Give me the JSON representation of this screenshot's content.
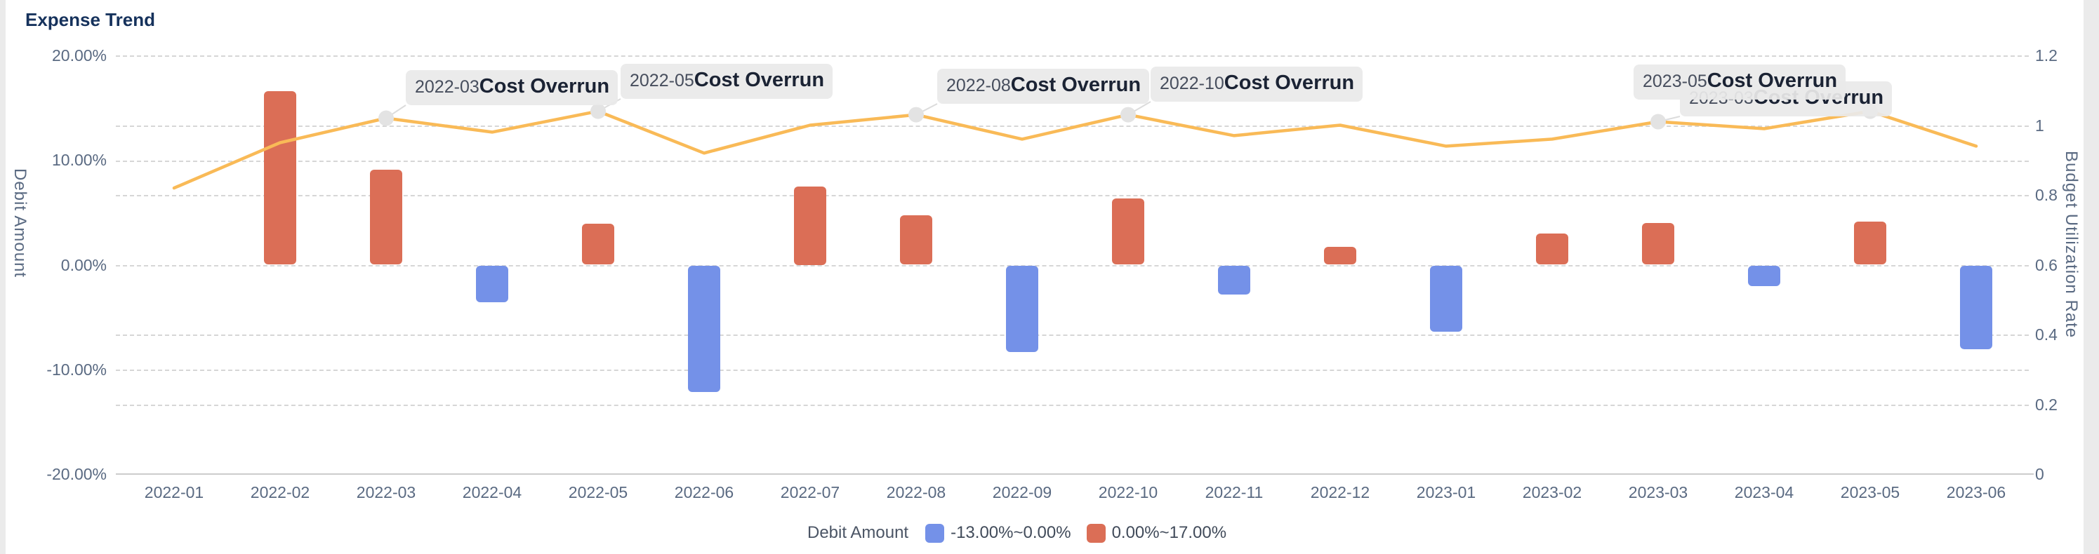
{
  "page": {
    "title": "Expense Trend"
  },
  "chart_data": {
    "type": "bar+line",
    "title": "Expense Trend",
    "categories": [
      "2022-01",
      "2022-02",
      "2022-03",
      "2022-04",
      "2022-05",
      "2022-06",
      "2022-07",
      "2022-08",
      "2022-09",
      "2022-10",
      "2022-11",
      "2022-12",
      "2023-01",
      "2023-02",
      "2023-03",
      "2023-04",
      "2023-05",
      "2023-06"
    ],
    "series": [
      {
        "name": "Debit Amount",
        "type": "bar",
        "axis": "left",
        "unit": "%",
        "values": [
          0,
          16.6,
          9.1,
          -3.5,
          3.9,
          -12.1,
          7.5,
          4.7,
          -8.3,
          6.3,
          -2.8,
          1.7,
          -6.3,
          3.0,
          4.0,
          -2.0,
          4.1,
          -8.0
        ]
      },
      {
        "name": "Budget Utilization Rate",
        "type": "line",
        "axis": "right",
        "values": [
          0.82,
          0.95,
          1.02,
          0.98,
          1.04,
          0.92,
          1.0,
          1.03,
          0.96,
          1.03,
          0.97,
          1.0,
          0.94,
          0.96,
          1.01,
          0.99,
          1.04,
          0.94
        ]
      }
    ],
    "left_axis": {
      "name": "Debit Amount",
      "tick_labels": [
        "20.00%",
        "10.00%",
        "0.00%",
        "-10.00%",
        "-20.00%"
      ],
      "tick_values": [
        20,
        10,
        0,
        -10,
        -20
      ],
      "ylim": [
        -20,
        20
      ]
    },
    "right_axis": {
      "name": "Budget Utilization Rate",
      "tick_labels": [
        "1.2",
        "1",
        "0.8",
        "0.6",
        "0.4",
        "0.2",
        "0"
      ],
      "tick_values": [
        1.2,
        1,
        0.8,
        0.6,
        0.4,
        0.2,
        0
      ],
      "ylim": [
        0,
        1.2
      ]
    },
    "grid": true,
    "legend_position": "bottom",
    "legend": {
      "series_label": "Debit Amount",
      "items": [
        {
          "label": "-13.00%~0.00%",
          "color": "#7491E8"
        },
        {
          "label": "0.00%~17.00%",
          "color": "#DB6E56"
        }
      ]
    },
    "annotations": [
      {
        "month": "2022-03",
        "text": "Cost Overrun"
      },
      {
        "month": "2022-05",
        "text": "Cost Overrun"
      },
      {
        "month": "2022-08",
        "text": "Cost Overrun"
      },
      {
        "month": "2022-10",
        "text": "Cost Overrun"
      },
      {
        "month": "2023-03",
        "text": "Cost Overrun"
      },
      {
        "month": "2023-05",
        "text": "Cost Overrun"
      }
    ],
    "colors": {
      "bar_positive": "#DB6E56",
      "bar_negative": "#7491E8",
      "line": "#F9BA57",
      "annotation_marker": "#E3E3E3",
      "annotation_leader": "#dcdcdc"
    }
  }
}
